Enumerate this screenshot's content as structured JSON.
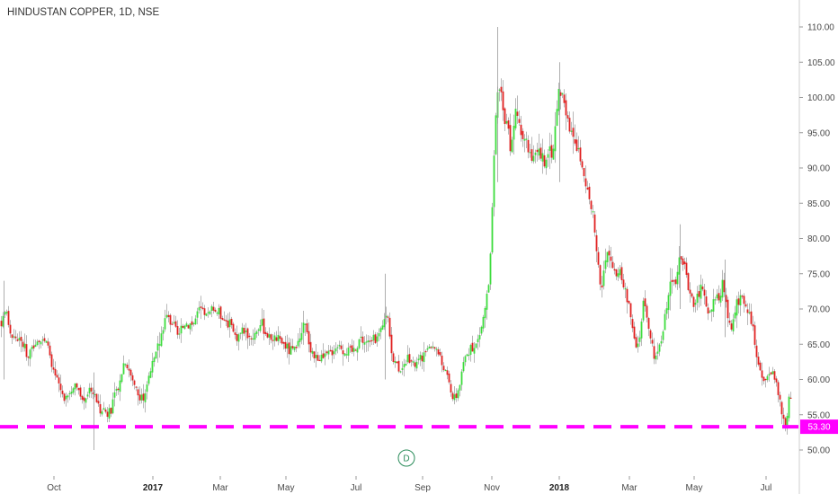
{
  "header": {
    "title": "HINDUSTAN COPPER, 1D, NSE"
  },
  "colors": {
    "up": "#3ddc3d",
    "down": "#e02020",
    "wick": "#9a9a9a",
    "support_line": "#ff00ff",
    "axis_line": "#cfcfcf",
    "marker": "#2a8c5a"
  },
  "chart_data": {
    "type": "candlestick",
    "ylim": [
      47,
      113
    ],
    "y_ticks": [
      "110.00",
      "105.00",
      "100.00",
      "95.00",
      "90.00",
      "85.00",
      "80.00",
      "75.00",
      "70.00",
      "65.00",
      "60.00",
      "55.00",
      "50.00"
    ],
    "x_ticks": [
      {
        "label": "Oct",
        "bold": false
      },
      {
        "label": "2017",
        "bold": true
      },
      {
        "label": "Mar",
        "bold": false
      },
      {
        "label": "May",
        "bold": false
      },
      {
        "label": "Jul",
        "bold": false
      },
      {
        "label": "Sep",
        "bold": false
      },
      {
        "label": "Nov",
        "bold": false
      },
      {
        "label": "2018",
        "bold": true
      },
      {
        "label": "Mar",
        "bold": false
      },
      {
        "label": "May",
        "bold": false
      },
      {
        "label": "Jul",
        "bold": false
      }
    ],
    "price_path": [
      [
        0,
        68
      ],
      [
        6,
        70
      ],
      [
        12,
        66
      ],
      [
        18,
        66
      ],
      [
        25,
        65
      ],
      [
        32,
        63
      ],
      [
        40,
        66
      ],
      [
        52,
        65
      ],
      [
        58,
        61
      ],
      [
        66,
        59
      ],
      [
        72,
        57
      ],
      [
        82,
        59
      ],
      [
        92,
        57
      ],
      [
        100,
        59
      ],
      [
        104,
        58
      ],
      [
        110,
        56
      ],
      [
        114,
        56
      ],
      [
        120,
        55
      ],
      [
        126,
        57
      ],
      [
        132,
        59
      ],
      [
        138,
        63
      ],
      [
        144,
        61
      ],
      [
        150,
        59
      ],
      [
        156,
        57
      ],
      [
        160,
        58
      ],
      [
        166,
        61
      ],
      [
        172,
        63
      ],
      [
        178,
        66
      ],
      [
        184,
        69
      ],
      [
        192,
        68
      ],
      [
        198,
        66
      ],
      [
        205,
        68
      ],
      [
        215,
        68
      ],
      [
        222,
        70
      ],
      [
        230,
        69
      ],
      [
        238,
        70
      ],
      [
        246,
        69
      ],
      [
        254,
        68
      ],
      [
        262,
        66
      ],
      [
        270,
        67
      ],
      [
        280,
        66
      ],
      [
        290,
        68
      ],
      [
        298,
        66
      ],
      [
        306,
        66
      ],
      [
        315,
        65
      ],
      [
        322,
        64
      ],
      [
        330,
        64
      ],
      [
        338,
        68
      ],
      [
        344,
        65
      ],
      [
        350,
        63
      ],
      [
        360,
        63
      ],
      [
        368,
        64
      ],
      [
        376,
        65
      ],
      [
        384,
        64
      ],
      [
        392,
        64
      ],
      [
        400,
        66
      ],
      [
        408,
        65
      ],
      [
        416,
        66
      ],
      [
        422,
        66
      ],
      [
        426,
        68
      ],
      [
        430,
        70
      ],
      [
        436,
        63
      ],
      [
        442,
        62
      ],
      [
        448,
        61
      ],
      [
        454,
        63
      ],
      [
        460,
        62
      ],
      [
        468,
        63
      ],
      [
        476,
        64
      ],
      [
        482,
        65
      ],
      [
        486,
        64
      ],
      [
        492,
        62
      ],
      [
        498,
        60
      ],
      [
        504,
        57
      ],
      [
        508,
        58
      ],
      [
        512,
        60
      ],
      [
        516,
        63
      ],
      [
        520,
        64
      ],
      [
        526,
        64
      ],
      [
        532,
        66
      ],
      [
        536,
        68
      ],
      [
        540,
        71
      ],
      [
        544,
        74
      ],
      [
        548,
        88
      ],
      [
        552,
        100
      ],
      [
        556,
        102
      ],
      [
        560,
        97
      ],
      [
        564,
        96
      ],
      [
        568,
        92
      ],
      [
        572,
        98
      ],
      [
        576,
        97
      ],
      [
        580,
        95
      ],
      [
        586,
        93
      ],
      [
        592,
        91
      ],
      [
        598,
        92
      ],
      [
        604,
        91
      ],
      [
        610,
        93
      ],
      [
        614,
        92
      ],
      [
        618,
        97
      ],
      [
        622,
        102
      ],
      [
        626,
        100
      ],
      [
        630,
        98
      ],
      [
        634,
        95
      ],
      [
        638,
        94
      ],
      [
        644,
        92
      ],
      [
        650,
        88
      ],
      [
        656,
        85
      ],
      [
        660,
        82
      ],
      [
        664,
        78
      ],
      [
        668,
        72
      ],
      [
        672,
        76
      ],
      [
        676,
        78
      ],
      [
        680,
        77
      ],
      [
        684,
        75
      ],
      [
        688,
        75
      ],
      [
        692,
        74
      ],
      [
        696,
        72
      ],
      [
        700,
        70
      ],
      [
        704,
        66
      ],
      [
        708,
        64
      ],
      [
        712,
        67
      ],
      [
        716,
        72
      ],
      [
        720,
        68
      ],
      [
        724,
        65
      ],
      [
        728,
        63
      ],
      [
        732,
        64
      ],
      [
        736,
        66
      ],
      [
        740,
        70
      ],
      [
        744,
        73
      ],
      [
        748,
        74
      ],
      [
        752,
        74
      ],
      [
        756,
        77
      ],
      [
        760,
        76
      ],
      [
        764,
        74
      ],
      [
        768,
        72
      ],
      [
        772,
        71
      ],
      [
        776,
        72
      ],
      [
        780,
        73
      ],
      [
        784,
        71
      ],
      [
        788,
        69
      ],
      [
        792,
        70
      ],
      [
        796,
        72
      ],
      [
        800,
        71
      ],
      [
        804,
        74
      ],
      [
        808,
        70
      ],
      [
        812,
        67
      ],
      [
        816,
        69
      ],
      [
        820,
        71
      ],
      [
        824,
        72
      ],
      [
        828,
        71
      ],
      [
        832,
        70
      ],
      [
        836,
        68
      ],
      [
        840,
        64
      ],
      [
        844,
        61
      ],
      [
        848,
        60
      ],
      [
        852,
        61
      ],
      [
        856,
        60
      ],
      [
        860,
        61
      ],
      [
        864,
        59
      ],
      [
        868,
        56
      ],
      [
        872,
        54
      ],
      [
        874,
        53
      ],
      [
        877,
        57
      ],
      [
        880,
        58
      ]
    ],
    "spikes": [
      [
        4,
        74,
        60
      ],
      [
        104,
        61,
        50
      ],
      [
        428,
        75,
        60
      ],
      [
        553,
        110,
        88
      ],
      [
        622,
        105,
        88
      ],
      [
        756,
        82,
        70
      ],
      [
        806,
        77,
        66
      ]
    ],
    "support": {
      "value": 53.3,
      "label": "53.30"
    },
    "marker_label": "D"
  }
}
